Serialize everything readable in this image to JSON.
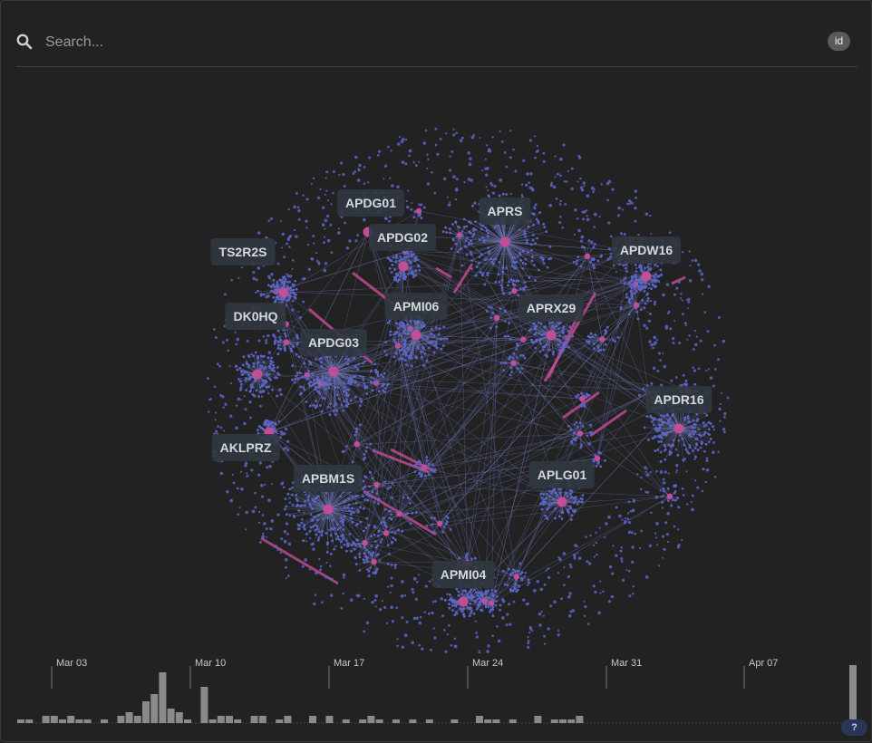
{
  "search": {
    "placeholder": "Search...",
    "icon": "search-icon",
    "id_chip": "id"
  },
  "graph": {
    "colors": {
      "node": "#5a64c8",
      "hub": "#c44d98",
      "edge": "#6d74b8",
      "highlight_edge": "#c44d98"
    },
    "labels": [
      "APRS",
      "APDG01",
      "APDG02",
      "TS2R2S",
      "APDW16",
      "APMI06",
      "APRX29",
      "DK0HQ",
      "APDG03",
      "APDR16",
      "AKLPRZ",
      "APLG01",
      "APBM1S",
      "APMI04"
    ]
  },
  "timeline": {
    "tick_labels": [
      "Mar 03",
      "Mar 10",
      "Mar 17",
      "Mar 24",
      "Mar 31",
      "Apr 07"
    ],
    "bar_color": "#8a8a8a",
    "counts": [
      1,
      1,
      0,
      2,
      2,
      1,
      2,
      1,
      1,
      0,
      1,
      0,
      2,
      3,
      2,
      6,
      8,
      14,
      4,
      3,
      1,
      0,
      10,
      1,
      2,
      2,
      1,
      0,
      2,
      2,
      0,
      1,
      2,
      0,
      0,
      2,
      0,
      2,
      0,
      1,
      0,
      1,
      2,
      1,
      0,
      1,
      0,
      1,
      0,
      1,
      0,
      0,
      1,
      0,
      0,
      2,
      1,
      1,
      0,
      1,
      0,
      0,
      2,
      0,
      1,
      1,
      1,
      2
    ],
    "last_count": 16
  },
  "help_label": "?"
}
